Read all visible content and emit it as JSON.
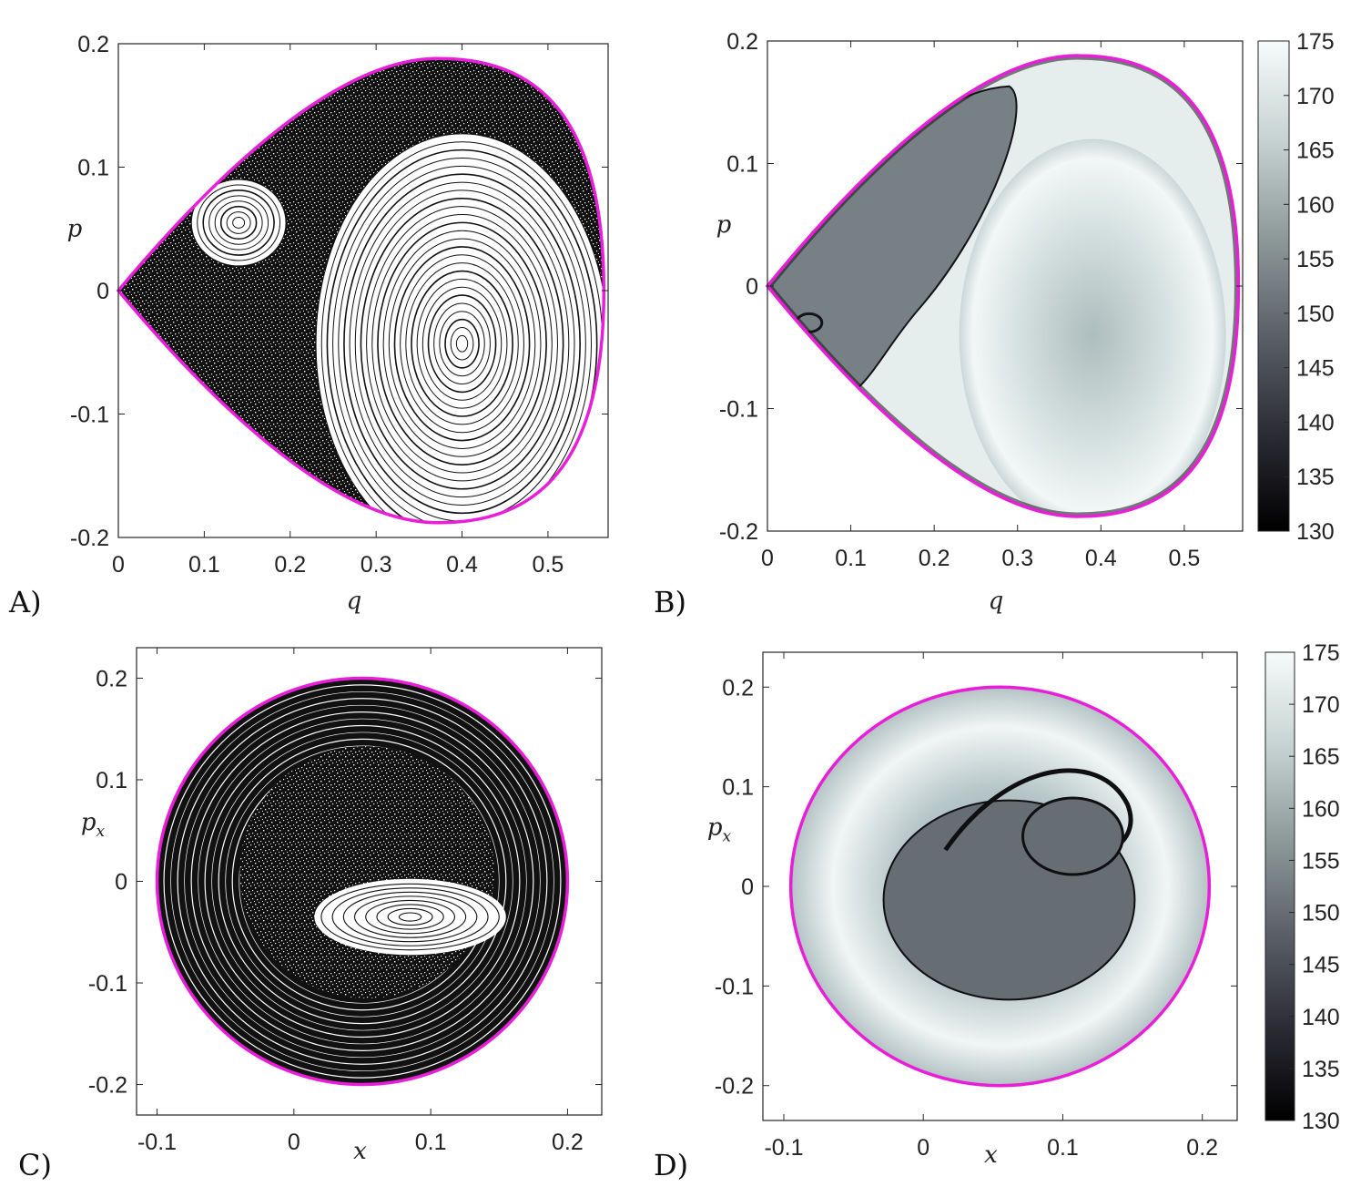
{
  "colors": {
    "boundary": "#e81ed8",
    "axis": "#262626",
    "grid_tick": "#262626",
    "cmap_low": "#000000",
    "cmap_high": "#f6fbfa"
  },
  "chart_data": [
    {
      "id": "A",
      "panel_label": "A)",
      "type": "scatter",
      "title": "",
      "xlabel": "q",
      "ylabel": "p",
      "xlim": [
        0,
        0.57
      ],
      "ylim": [
        -0.2,
        0.2
      ],
      "x_ticks": [
        "0",
        "0.1",
        "0.2",
        "0.3",
        "0.4",
        "0.5"
      ],
      "y_ticks": [
        "0.2",
        "0.1",
        "0",
        "-0.1",
        "-0.2"
      ],
      "grid": false,
      "legend": "none",
      "boundary": {
        "shape": "teardrop",
        "cusp": [
          0,
          0
        ],
        "top": [
          0.375,
          0.188
        ],
        "right": [
          0.565,
          0.0
        ],
        "bottom": [
          0.375,
          -0.188
        ]
      },
      "islands": [
        {
          "center": [
            0.4,
            -0.043
          ],
          "radius_x": 0.17,
          "radius_y": 0.17,
          "note": "regular orbits"
        },
        {
          "center": [
            0.14,
            0.055
          ],
          "radius_x": 0.055,
          "radius_y": 0.035,
          "note": "regular orbits"
        }
      ],
      "chaotic_region": true
    },
    {
      "id": "B",
      "panel_label": "B)",
      "type": "heatmap",
      "title": "",
      "xlabel": "q",
      "ylabel": "p",
      "xlim": [
        0,
        0.57
      ],
      "ylim": [
        -0.2,
        0.2
      ],
      "x_ticks": [
        "0",
        "0.1",
        "0.2",
        "0.3",
        "0.4",
        "0.5"
      ],
      "y_ticks": [
        "0.2",
        "0.1",
        "0",
        "-0.1",
        "-0.2"
      ],
      "colorbar": {
        "min": 130,
        "max": 175,
        "ticks": [
          "175",
          "170",
          "165",
          "160",
          "155",
          "150",
          "145",
          "140",
          "135",
          "130"
        ]
      },
      "grid": false,
      "legend": "none",
      "boundary": {
        "shape": "teardrop",
        "cusp": [
          0,
          0
        ],
        "top": [
          0.375,
          0.188
        ],
        "right": [
          0.565,
          0.0
        ],
        "bottom": [
          0.375,
          -0.188
        ]
      },
      "region_values": {
        "outer_band": 172,
        "inner_core": 162,
        "chaotic_region": 153,
        "dark_filaments": 134
      }
    },
    {
      "id": "C",
      "panel_label": "C)",
      "type": "scatter",
      "title": "",
      "xlabel": "x",
      "ylabel": "p_x",
      "xlim": [
        -0.115,
        0.225
      ],
      "ylim": [
        -0.23,
        0.23
      ],
      "x_ticks": [
        "-0.1",
        "0",
        "0.1",
        "0.2"
      ],
      "y_ticks": [
        "0.2",
        "0.1",
        "0",
        "-0.1",
        "-0.2"
      ],
      "grid": false,
      "legend": "none",
      "boundary": {
        "shape": "ellipse",
        "center": [
          0.05,
          0.0
        ],
        "radius_x": 0.15,
        "radius_y": 0.2
      },
      "islands": [
        {
          "center": [
            0.085,
            -0.035
          ],
          "radius_x": 0.05,
          "radius_y": 0.025,
          "note": "crescent island"
        }
      ],
      "chaotic_region": true
    },
    {
      "id": "D",
      "panel_label": "D)",
      "type": "heatmap",
      "title": "",
      "xlabel": "x",
      "ylabel": "p_x",
      "xlim": [
        -0.115,
        0.225
      ],
      "ylim": [
        -0.235,
        0.235
      ],
      "x_ticks": [
        "-0.1",
        "0",
        "0.1",
        "0.2"
      ],
      "y_ticks": [
        "0.2",
        "0.1",
        "0",
        "-0.1",
        "-0.2"
      ],
      "colorbar": {
        "min": 130,
        "max": 175,
        "ticks": [
          "175",
          "170",
          "165",
          "160",
          "155",
          "150",
          "145",
          "140",
          "135",
          "130"
        ]
      },
      "grid": false,
      "legend": "none",
      "boundary": {
        "shape": "ellipse",
        "center": [
          0.055,
          0.0
        ],
        "radius_x": 0.15,
        "radius_y": 0.2
      },
      "region_values": {
        "outer_band": 172,
        "inner_core": 150,
        "dark_filaments": 133
      }
    }
  ]
}
